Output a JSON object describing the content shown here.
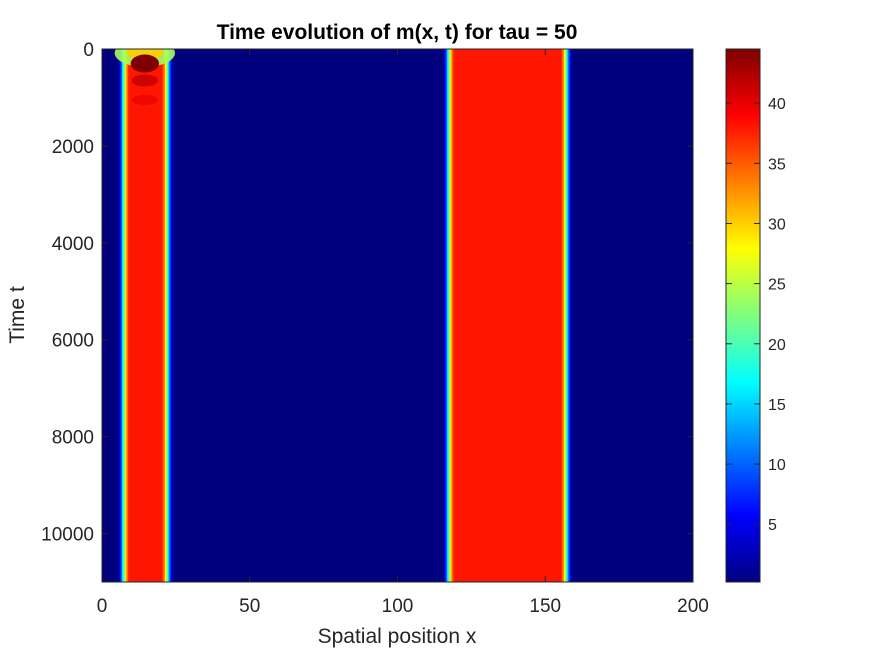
{
  "chart_data": {
    "type": "heatmap",
    "title": "Time evolution of m(x, t) for tau = 50",
    "xlabel": "Spatial position x",
    "ylabel": "Time t",
    "xlim": [
      0,
      200
    ],
    "ylim": [
      0,
      11000
    ],
    "y_reversed": true,
    "x_ticks": [
      "0",
      "50",
      "100",
      "150",
      "200"
    ],
    "y_ticks": [
      "0",
      "2000",
      "4000",
      "6000",
      "8000",
      "10000"
    ],
    "colormap": "jet",
    "colorbar": {
      "clim": [
        0.2,
        44.5
      ],
      "ticks": [
        "5",
        "10",
        "15",
        "20",
        "25",
        "30",
        "35",
        "40"
      ]
    },
    "background_value": 0.2,
    "bands": [
      {
        "x_start": 7,
        "x_end": 22,
        "value": 38,
        "initial_transient": {
          "t_end": 800,
          "peak_value": 44.5,
          "peak_t": 300,
          "peak_x": 14.5
        }
      },
      {
        "x_start": 117,
        "x_end": 157,
        "value": 38
      }
    ]
  }
}
